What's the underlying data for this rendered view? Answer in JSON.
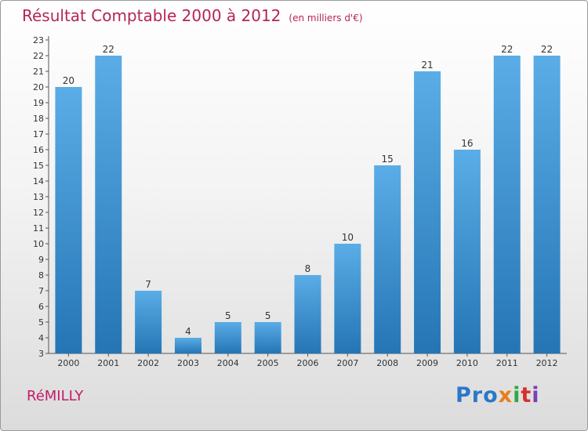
{
  "title": "Résultat Comptable 2000 à 2012",
  "subtitle": "(en milliers d'€)",
  "town": "RéMILLY",
  "logo": {
    "p1": "Pro",
    "p2": "x",
    "p3": "i",
    "p4": "t",
    "p5": "i"
  },
  "colors": {
    "bar_top": "#5aade6",
    "bar_bottom": "#2575b5",
    "title": "#b4245a"
  },
  "chart_data": {
    "type": "bar",
    "title": "Résultat Comptable 2000 à 2012",
    "subtitle": "(en milliers d'€)",
    "xlabel": "",
    "ylabel": "",
    "categories": [
      "2000",
      "2001",
      "2002",
      "2003",
      "2004",
      "2005",
      "2006",
      "2007",
      "2008",
      "2009",
      "2010",
      "2011",
      "2012"
    ],
    "values": [
      20,
      22,
      7,
      4,
      5,
      5,
      8,
      10,
      15,
      21,
      16,
      22,
      22
    ],
    "ylim": [
      3,
      23
    ],
    "yticks": [
      3,
      4,
      5,
      6,
      7,
      8,
      9,
      10,
      11,
      12,
      13,
      14,
      15,
      16,
      17,
      18,
      19,
      20,
      21,
      22,
      23
    ],
    "grid": false
  }
}
